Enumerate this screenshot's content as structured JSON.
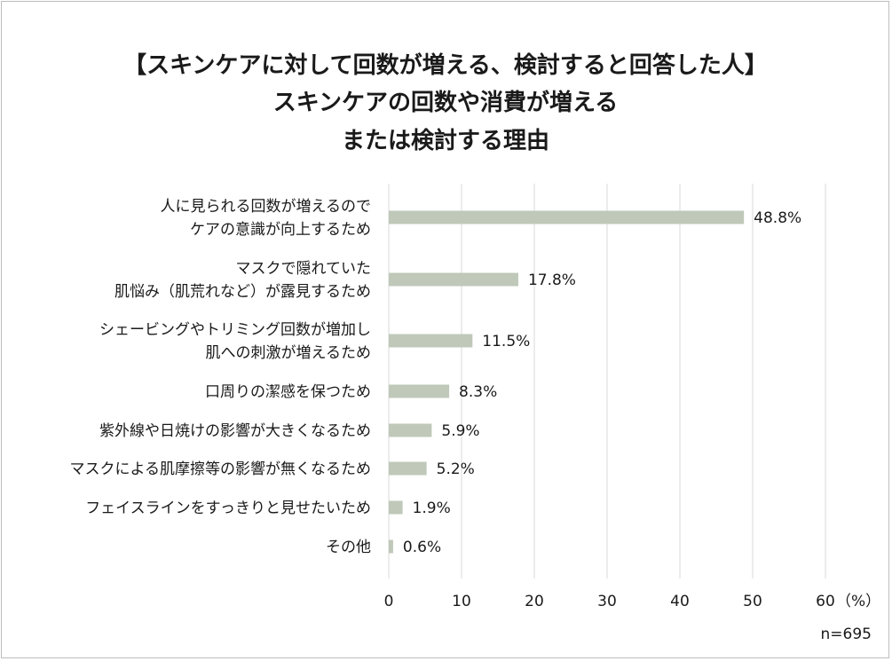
{
  "chart_data": {
    "type": "bar",
    "orientation": "horizontal",
    "title": [
      "【スキンケアに対して回数が増える、検討すると回答した人】",
      "スキンケアの回数や消費が増える",
      "または検討する理由"
    ],
    "categories": [
      [
        "人に見られる回数が増えるので",
        "ケアの意識が向上するため"
      ],
      [
        "マスクで隠れていた",
        "肌悩み（肌荒れなど）が露見するため"
      ],
      [
        "シェービングやトリミング回数が増加し",
        "肌への刺激が増えるため"
      ],
      [
        "口周りの潔感を保つため"
      ],
      [
        "紫外線や日焼けの影響が大きくなるため"
      ],
      [
        "マスクによる肌摩擦等の影響が無くなるため"
      ],
      [
        "フェイスラインをすっきりと見せたいため"
      ],
      [
        "その他"
      ]
    ],
    "values": [
      48.8,
      17.8,
      11.5,
      8.3,
      5.9,
      5.2,
      1.9,
      0.6
    ],
    "value_labels": [
      "48.8%",
      "17.8%",
      "11.5%",
      "8.3%",
      "5.9%",
      "5.2%",
      "1.9%",
      "0.6%"
    ],
    "xlim": [
      0,
      60
    ],
    "xticks": [
      "0",
      "10",
      "20",
      "30",
      "40",
      "50",
      "60"
    ],
    "unit": "（%）",
    "sample_size": "n=695",
    "grid": true,
    "bar_color": "#bfc8b9",
    "grid_color": "#d9d9d9"
  }
}
